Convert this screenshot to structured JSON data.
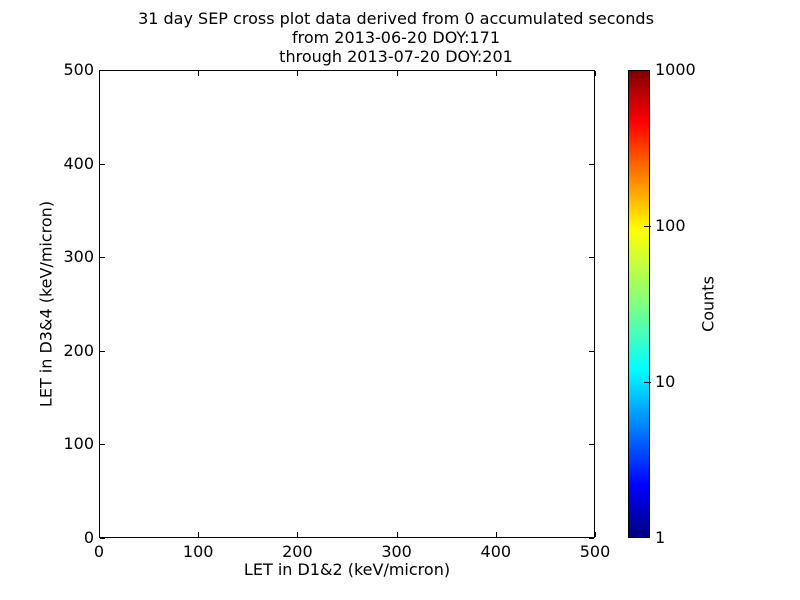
{
  "chart_data": {
    "type": "heatmap",
    "title_lines": [
      "31 day SEP cross plot data derived from 0 accumulated seconds",
      "from 2013-06-20 DOY:171",
      "through 2013-07-20 DOY:201"
    ],
    "xlabel": "LET in D1&2 (keV/micron)",
    "ylabel": "LET in D3&4 (keV/micron)",
    "xlim": [
      0,
      500
    ],
    "ylim": [
      0,
      500
    ],
    "xticks": [
      0,
      100,
      200,
      300,
      400,
      500
    ],
    "yticks": [
      0,
      100,
      200,
      300,
      400,
      500
    ],
    "grid": false,
    "points": [],
    "colorbar": {
      "label": "Counts",
      "scale": "log",
      "min": 1,
      "max": 1000,
      "ticks": [
        1,
        10,
        100,
        1000
      ],
      "colormap": "jet"
    }
  },
  "colors": {
    "background": "#ffffff",
    "text": "#000000",
    "axis": "#000000",
    "jet_stops": [
      "#000080",
      "#0000ff",
      "#00ffff",
      "#80ff80",
      "#ffff00",
      "#ff0000",
      "#800000"
    ]
  }
}
